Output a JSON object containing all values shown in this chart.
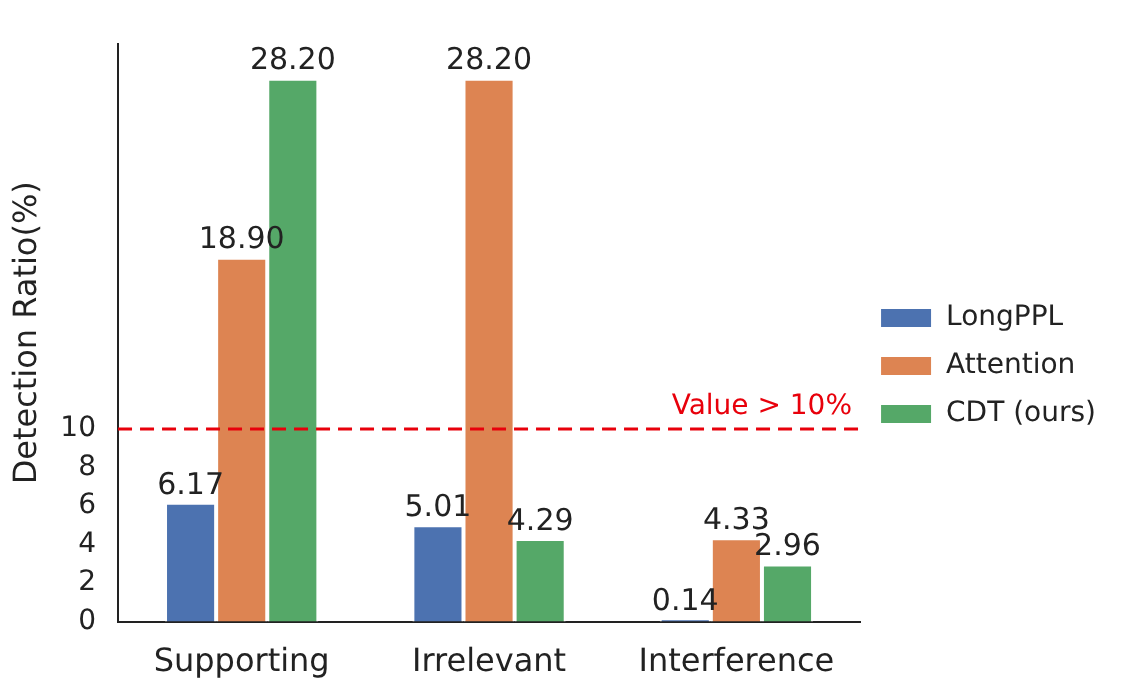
{
  "chart_data": {
    "type": "bar",
    "ylabel": "Detection Ratio(%)",
    "categories": [
      "Supporting",
      "Irrelevant",
      "Interference"
    ],
    "series": [
      {
        "name": "LongPPL",
        "color": "#4c72b0",
        "values": [
          6.17,
          5.01,
          0.14
        ],
        "value_labels": [
          "6.17",
          "5.01",
          "0.14"
        ]
      },
      {
        "name": "Attention",
        "color": "#dd8452",
        "values": [
          18.9,
          28.2,
          4.33
        ],
        "value_labels": [
          "18.90",
          "28.20",
          "4.33"
        ]
      },
      {
        "name": "CDT (ours)",
        "color": "#55a868",
        "values": [
          28.2,
          4.29,
          2.96
        ],
        "value_labels": [
          "28.20",
          "4.29",
          "2.96"
        ]
      }
    ],
    "ylim": [
      0,
      30
    ],
    "yticks": [
      0,
      2,
      4,
      6,
      8,
      10
    ],
    "ref_lines": [
      {
        "axis": "y",
        "value": 10,
        "label": "Value > 10%",
        "color": "#e8000b",
        "line_style": "dashed"
      }
    ],
    "legend": "right"
  }
}
